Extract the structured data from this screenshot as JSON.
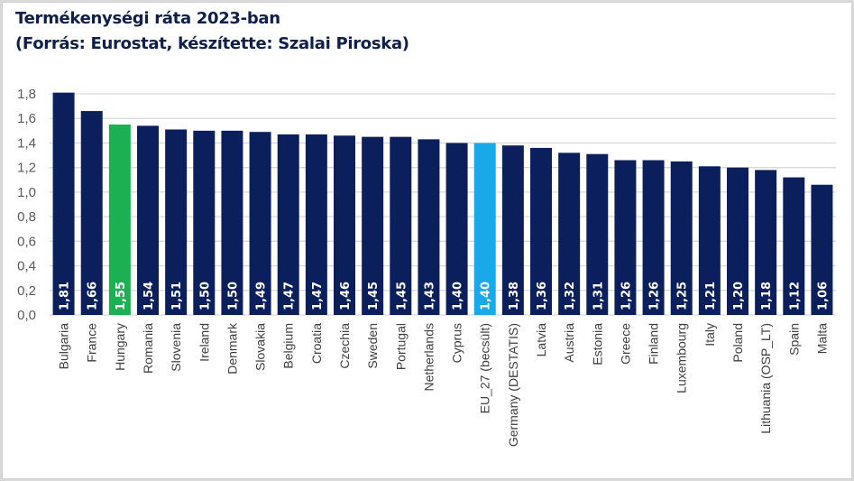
{
  "chart_data": {
    "type": "bar",
    "title": "Termékenységi ráta 2023-ban",
    "subtitle": "(Forrás: Eurostat, készítette: Szalai Piroska)",
    "xlabel": "",
    "ylabel": "",
    "ylim": [
      0,
      1.8
    ],
    "yticks": [
      0.0,
      0.2,
      0.4,
      0.6,
      0.8,
      1.0,
      1.2,
      1.4,
      1.6,
      1.8
    ],
    "ytick_labels": [
      "0,0",
      "0,2",
      "0,4",
      "0,6",
      "0,8",
      "1,0",
      "1,2",
      "1,4",
      "1,6",
      "1,8"
    ],
    "grid": true,
    "legend": "none",
    "categories": [
      "Bulgaria",
      "France",
      "Hungary",
      "Romania",
      "Slovenia",
      "Ireland",
      "Denmark",
      "Slovakia",
      "Belgium",
      "Croatia",
      "Czechia",
      "Sweden",
      "Portugal",
      "Netherlands",
      "Cyprus",
      "EU_27 (becsült)",
      "Germany (DESTATIS)",
      "Latvia",
      "Austria",
      "Estonia",
      "Greece",
      "Finland",
      "Luxembourg",
      "Italy",
      "Poland",
      "Lithuania (OSP_LT)",
      "Spain",
      "Malta"
    ],
    "values": [
      1.81,
      1.66,
      1.55,
      1.54,
      1.51,
      1.5,
      1.5,
      1.49,
      1.47,
      1.47,
      1.46,
      1.45,
      1.45,
      1.43,
      1.4,
      1.4,
      1.38,
      1.36,
      1.32,
      1.31,
      1.26,
      1.26,
      1.25,
      1.21,
      1.2,
      1.18,
      1.12,
      1.06
    ],
    "data_labels": [
      "1,81",
      "1,66",
      "1,55",
      "1,54",
      "1,51",
      "1,50",
      "1,50",
      "1,49",
      "1,47",
      "1,47",
      "1,46",
      "1,45",
      "1,45",
      "1,43",
      "1,40",
      "1,40",
      "1,38",
      "1,36",
      "1,32",
      "1,31",
      "1,26",
      "1,26",
      "1,25",
      "1,21",
      "1,20",
      "1,18",
      "1,12",
      "1,06"
    ],
    "colors": {
      "default": "#0b1f5c",
      "Hungary": "#1db052",
      "EU_27 (becsült)": "#1aa9e8",
      "grid": "#d9d9d9",
      "title": "#0f1f4b"
    }
  }
}
